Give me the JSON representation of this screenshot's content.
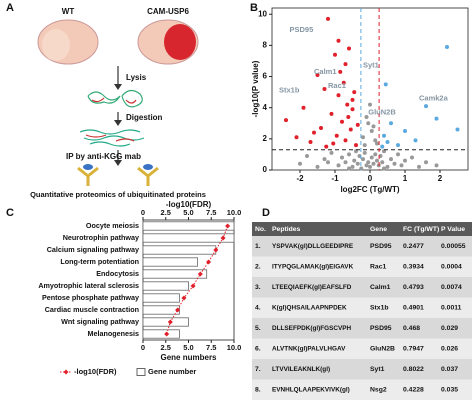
{
  "panel_labels": [
    "A",
    "B",
    "C",
    "D"
  ],
  "diagram": {
    "wt": "WT",
    "tg": "CAM-USP6",
    "steps": [
      "Lysis",
      "Digestion",
      "IP by anti-KGG mab"
    ],
    "caption": "Quantitative proteomics of ubiquitinated proteins"
  },
  "chart_data": [
    {
      "type": "scatter",
      "xlabel": "log2FC (Tg/WT)",
      "ylabel": "-log10(P value)",
      "xlim": [
        -2.8,
        2.8
      ],
      "xticks": [
        -2,
        -1,
        0,
        1,
        2
      ],
      "ylim": [
        0,
        10.4
      ],
      "yticks": [
        0,
        2,
        4,
        6,
        8,
        10
      ],
      "hlines": [
        {
          "value": 1.3,
          "color": "#222222"
        }
      ],
      "vlines": [
        {
          "value": -0.26,
          "color": "#5aa9e0"
        },
        {
          "value": 0.26,
          "color": "#e0202a"
        }
      ],
      "series": [
        {
          "color": "#999999",
          "x": [
            -2.0,
            -1.8,
            -1.5,
            -1.3,
            -1.1,
            -0.9,
            -0.8,
            -0.7,
            -0.6,
            -0.5,
            -0.45,
            -0.4,
            -0.35,
            -0.3,
            -0.25,
            -0.2,
            -0.15,
            -0.1,
            -0.05,
            0,
            0.05,
            0.1,
            0.15,
            0.2,
            0.25,
            0.3,
            0.35,
            0.4,
            0.5,
            0.6,
            0.7,
            0.8,
            0.9,
            1.0,
            1.2,
            1.4,
            1.6,
            1.9,
            -0.2,
            -0.1,
            0,
            0.1,
            0.2,
            -0.15,
            0.05,
            -0.05,
            0.15,
            -0.6,
            0.4,
            -1.2
          ],
          "values": [
            0.4,
            0.9,
            0.2,
            0.7,
            1.1,
            0.3,
            0.8,
            0.5,
            1.0,
            0.2,
            0.6,
            1.2,
            0.4,
            0.9,
            0.1,
            0.7,
            1.1,
            0.3,
            0.5,
            0.2,
            0.8,
            0.4,
            1.0,
            0.6,
            0.3,
            0.9,
            0.5,
            1.2,
            0.2,
            0.7,
            0.4,
            1.0,
            0.3,
            0.6,
            0.8,
            0.2,
            0.5,
            0.3,
            2.1,
            3.4,
            4.2,
            2.8,
            1.7,
            1.6,
            2.5,
            3.0,
            1.9,
            0.1,
            0.1,
            0.5
          ]
        },
        {
          "color": "#e0202a",
          "x": [
            -2.4,
            -2.1,
            -1.9,
            -1.7,
            -1.5,
            -1.4,
            -1.3,
            -1.2,
            -1.1,
            -1.0,
            -0.95,
            -0.9,
            -0.85,
            -0.8,
            -0.75,
            -0.7,
            -0.65,
            -0.6,
            -0.55,
            -0.5,
            -0.45,
            -0.4,
            -0.35,
            -1.6,
            -1.25,
            -0.9,
            -0.7,
            -0.5,
            -1.05,
            -0.62
          ],
          "values": [
            3.2,
            2.1,
            4.0,
            1.8,
            6.1,
            2.7,
            5.2,
            9.7,
            3.6,
            7.4,
            2.2,
            4.8,
            6.3,
            3.1,
            5.6,
            1.9,
            4.2,
            7.8,
            2.6,
            3.9,
            5.0,
            1.6,
            2.9,
            2.4,
            1.5,
            8.3,
            6.8,
            4.5,
            1.7,
            3.4
          ]
        },
        {
          "color": "#5aa9e0",
          "x": [
            0.35,
            0.4,
            0.5,
            0.6,
            0.8,
            1.0,
            1.3,
            1.6,
            1.9,
            2.2,
            2.5,
            0.45
          ],
          "values": [
            1.5,
            2.2,
            1.8,
            3.0,
            1.6,
            2.5,
            1.9,
            4.1,
            3.3,
            7.9,
            2.6,
            5.5
          ]
        }
      ],
      "annotation_color": "#8596a4",
      "annotations": [
        {
          "text": "PSD95",
          "x": -2.3,
          "y": 9.0
        },
        {
          "text": "Stx1b",
          "x": -2.6,
          "y": 5.1
        },
        {
          "text": "Calm1",
          "x": -1.6,
          "y": 6.3
        },
        {
          "text": "Rac1",
          "x": -1.2,
          "y": 5.4
        },
        {
          "text": "Syt1",
          "x": -0.2,
          "y": 6.7
        },
        {
          "text": "GluN2B",
          "x": -0.05,
          "y": 3.7
        },
        {
          "text": "Camk2a",
          "x": 1.4,
          "y": 4.6
        }
      ]
    },
    {
      "type": "bar",
      "orientation": "horizontal",
      "categories": [
        "Oocyte meiosis",
        "Neurotrophin pathway",
        "Calcium signaling pathway",
        "Long-term potentiation",
        "Endocytosis",
        "Amyotrophic lateral sclerosis",
        "Pentose phosphate pathway",
        "Cardiac muscle contraction",
        "Wnt signaling pathway",
        "Melanogenesis"
      ],
      "xlabel": "Gene numbers",
      "x2label": "-log10(FDR)",
      "xlim": [
        0,
        10
      ],
      "xticks": [
        0,
        2.5,
        {
          "value": 5,
          "label": "5.0"
        },
        7.5,
        {
          "value": 10,
          "label": "10.0"
        }
      ],
      "x2lim": [
        0,
        10
      ],
      "x2ticks": [
        0,
        2.5,
        {
          "value": 5,
          "label": "5.0"
        },
        7.5,
        {
          "value": 10,
          "label": "10.0"
        }
      ],
      "series": [
        {
          "name": "Gene number",
          "color": "#ffffff",
          "values": [
            10,
            10,
            8,
            6,
            7,
            5,
            4,
            4,
            5,
            4
          ]
        },
        {
          "name": "-log10(FDR)",
          "color": "#e0202a",
          "axis": "x2",
          "values": [
            9.3,
            8.8,
            8.0,
            7.2,
            6.3,
            5.5,
            4.5,
            3.8,
            3.0,
            2.6
          ]
        }
      ]
    }
  ],
  "table": {
    "header": [
      "No.",
      "Peptides",
      "Gene",
      "FC (Tg/WT)",
      "P Value"
    ],
    "rows": [
      [
        "1.",
        "YSPVAK(gl)DLLGEEDIPRE",
        "PSD95",
        "0.2477",
        "0.00055"
      ],
      [
        "2.",
        "ITYPQGLAMAK(gl)EIGAVK",
        "Rac1",
        "0.3934",
        "0.0004"
      ],
      [
        "3.",
        "LTEEQIAEFK(gl)EAFSLFD",
        "Calm1",
        "0.4793",
        "0.0074"
      ],
      [
        "4.",
        "K(gl)QHSAILAAPNPDEK",
        "Stx1b",
        "0.4901",
        "0.0011"
      ],
      [
        "5.",
        "DLLSEFPDK(gl)FGSCVPH",
        "PSD95",
        "0.468",
        "0.029"
      ],
      [
        "6.",
        "ALVTNK(gl)PALVLHGAV",
        "GluN2B",
        "0.7947",
        "0.026"
      ],
      [
        "7.",
        "LTVVILEAKNLK(gl)",
        "Syt1",
        "0.8022",
        "0.037"
      ],
      [
        "8.",
        "EVNHLQLAAPEKVIVK(gl)",
        "Nsg2",
        "0.4228",
        "0.035"
      ]
    ]
  }
}
